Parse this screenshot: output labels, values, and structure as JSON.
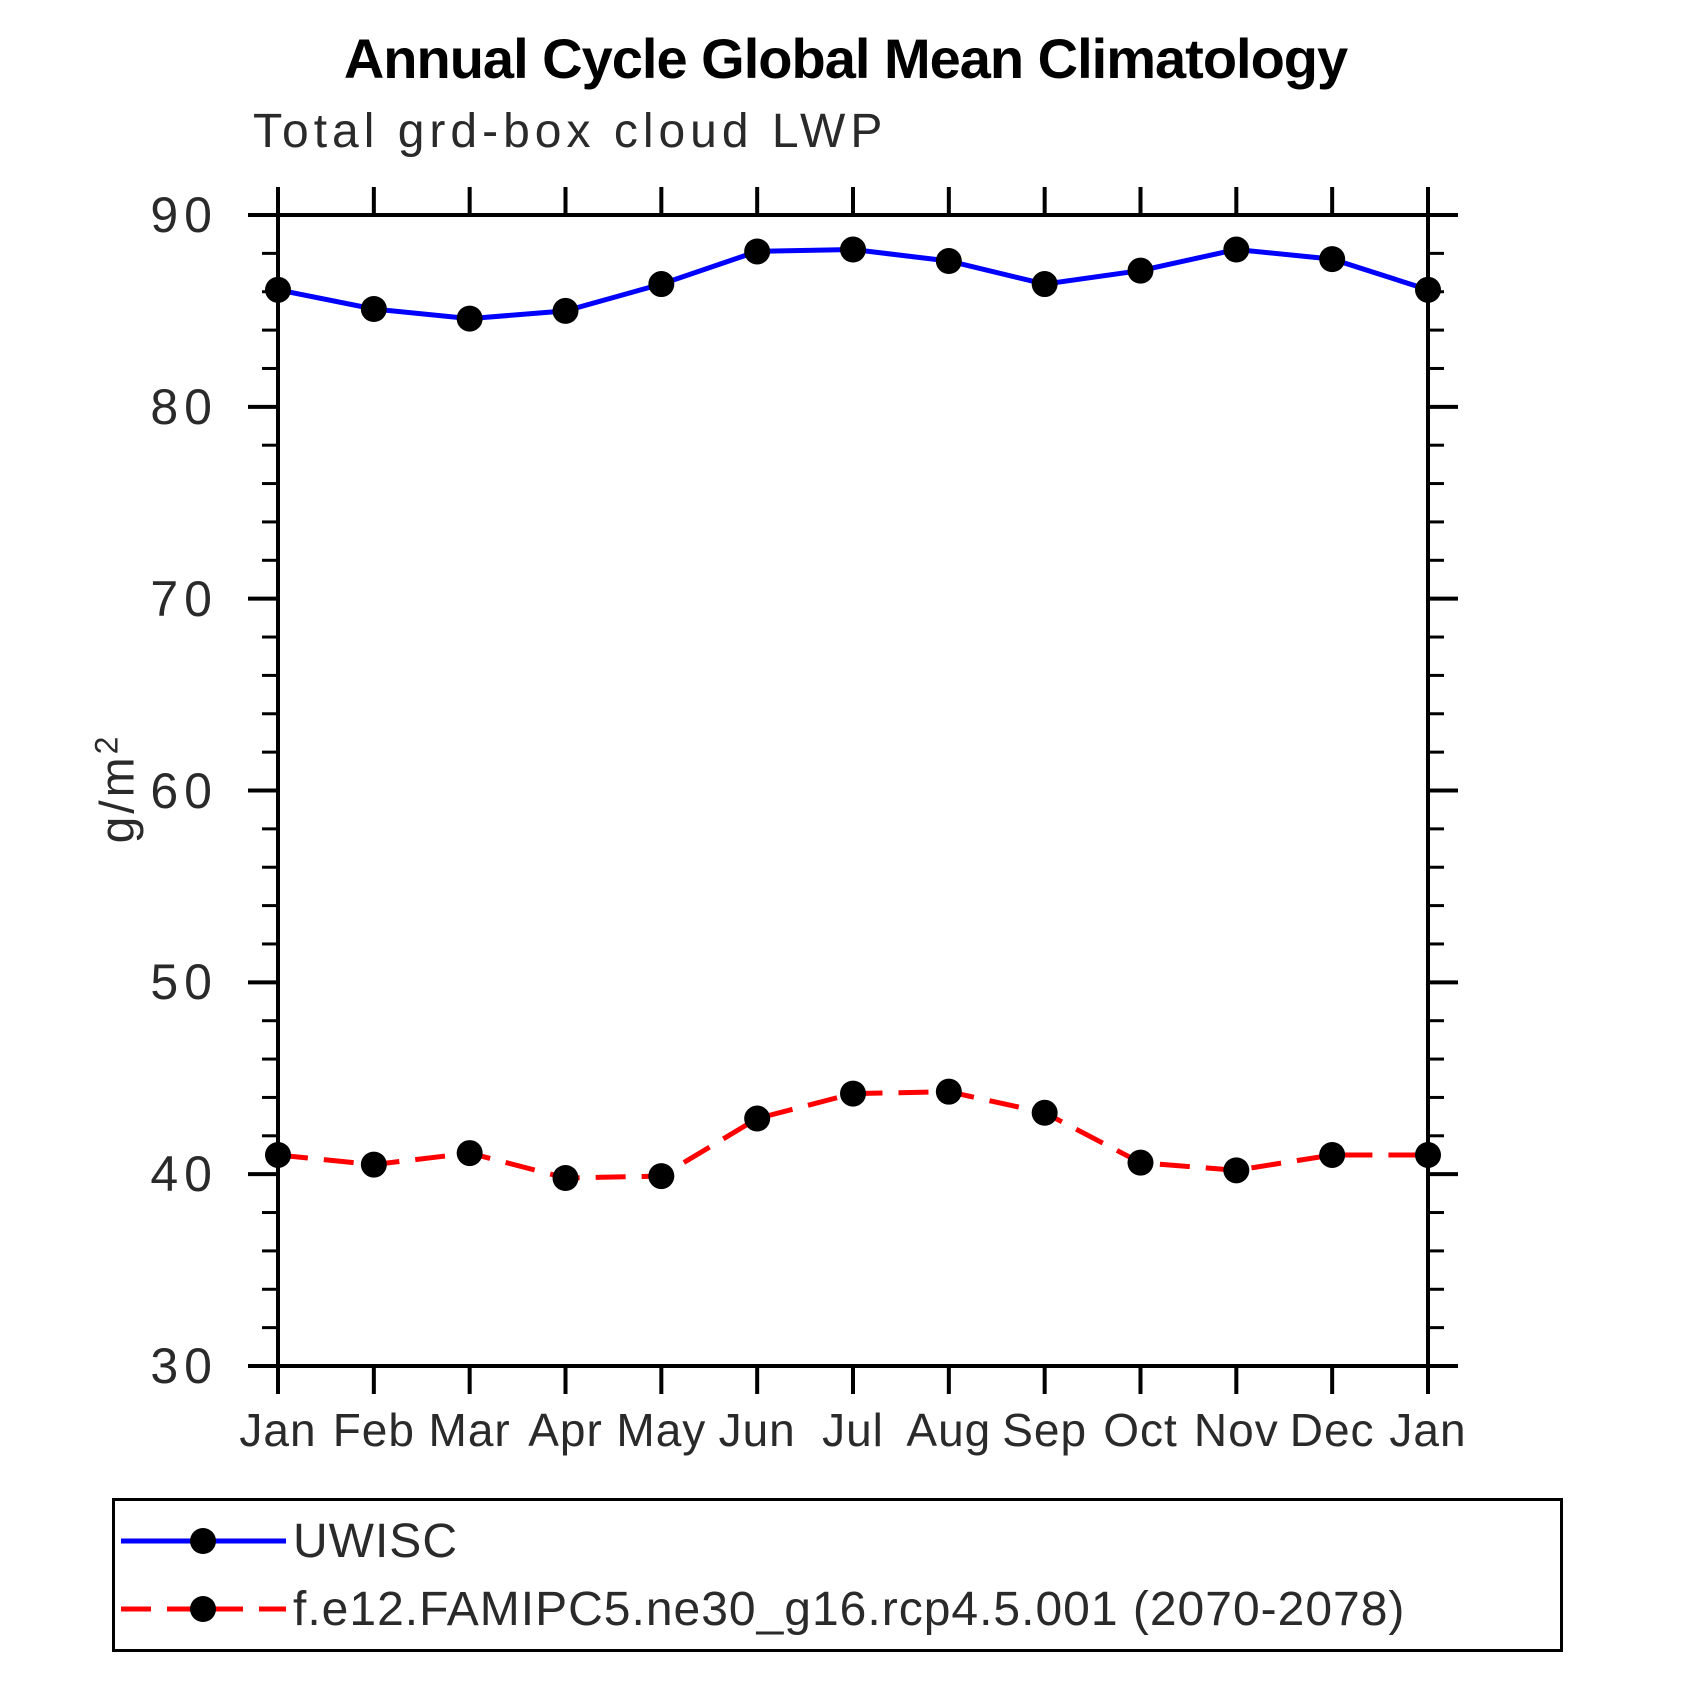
{
  "chart_data": {
    "type": "line",
    "title": "Annual Cycle Global Mean Climatology",
    "subtitle": "Total grd-box cloud LWP",
    "ylabel_base": "g/m",
    "ylabel_exponent": "2",
    "x_categories": [
      "Jan",
      "Feb",
      "Mar",
      "Apr",
      "May",
      "Jun",
      "Jul",
      "Aug",
      "Sep",
      "Oct",
      "Nov",
      "Dec",
      "Jan"
    ],
    "ylim": [
      30,
      90
    ],
    "y_major_ticks": [
      90,
      80,
      70,
      60,
      50,
      40,
      30
    ],
    "y_minor_step": 2,
    "grid": false,
    "legend_position": "bottom-left-box",
    "series": [
      {
        "name": "UWISC",
        "color": "#0000ff",
        "line_style": "solid",
        "marker": "filled-black-circle",
        "values": [
          86.1,
          85.1,
          84.6,
          85.0,
          86.4,
          88.1,
          88.2,
          87.6,
          86.4,
          87.1,
          88.2,
          87.7,
          86.1
        ]
      },
      {
        "name": "f.e12.FAMIPC5.ne30_g16.rcp4.5.001 (2070-2078)",
        "color": "#ff0000",
        "line_style": "dashed",
        "marker": "filled-black-circle",
        "values": [
          41.0,
          40.5,
          41.1,
          39.8,
          39.9,
          42.9,
          44.2,
          44.3,
          43.2,
          40.6,
          40.2,
          41.0,
          41.0
        ]
      }
    ]
  },
  "colors": {
    "axis": "#000000",
    "marker": "#000000",
    "background": "#ffffff",
    "series_blue": "#0000ff",
    "series_red": "#ff0000"
  }
}
